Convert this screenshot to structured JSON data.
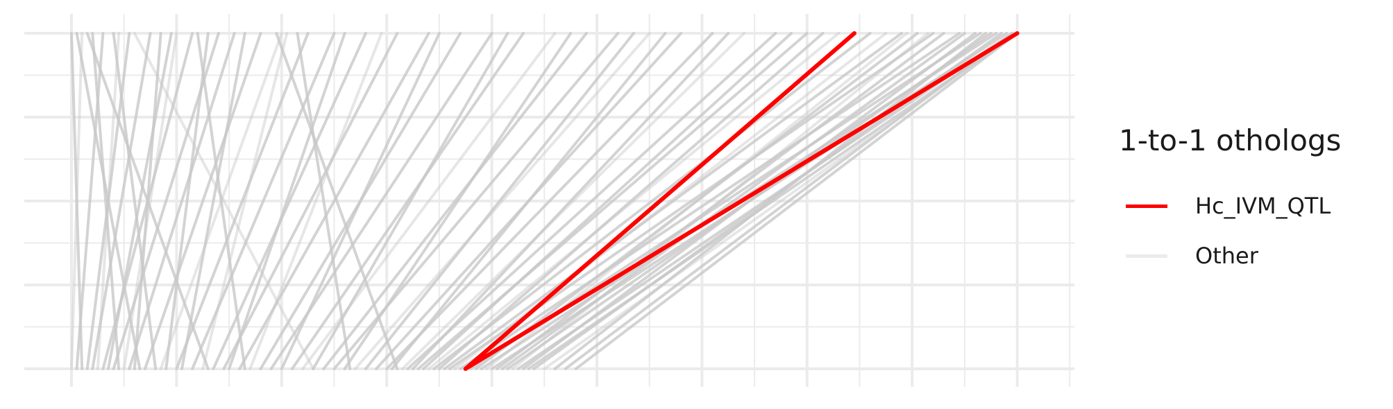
{
  "chart_data": {
    "type": "line",
    "title": "",
    "xlabel": "",
    "ylabel": "",
    "xlim": [
      0,
      19
    ],
    "ylim": [
      0,
      1
    ],
    "grid": true,
    "legend_position": "right",
    "legend": {
      "title": "1-to-1 othologs",
      "entries": [
        {
          "name": "Hc_IVM_QTL",
          "color": "#ff0000"
        },
        {
          "name": "Other",
          "color": "#ebebeb"
        }
      ]
    },
    "series": [
      {
        "name": "Hc_IVM_QTL",
        "color": "#ff0000",
        "segments": [
          {
            "x0": 7.5,
            "x1": 14.9
          },
          {
            "x0": 7.5,
            "x1": 18.0
          }
        ]
      },
      {
        "name": "Other",
        "color": "#c8c8c8",
        "segments": [
          {
            "x0": 0.0,
            "x1": 0.2
          },
          {
            "x0": 0.1,
            "x1": 0.6
          },
          {
            "x0": 0.2,
            "x1": 0.0
          },
          {
            "x0": 0.3,
            "x1": 1.1
          },
          {
            "x0": 0.4,
            "x1": 1.5
          },
          {
            "x0": 0.5,
            "x1": 0.9
          },
          {
            "x0": 0.6,
            "x1": 2.3
          },
          {
            "x0": 0.7,
            "x1": 1.9
          },
          {
            "x0": 0.8,
            "x1": 2.8
          },
          {
            "x0": 0.9,
            "x1": 0.4
          },
          {
            "x0": 1.0,
            "x1": 2.0
          },
          {
            "x0": 1.1,
            "x1": 3.1
          },
          {
            "x0": 1.2,
            "x1": 1.7
          },
          {
            "x0": 1.4,
            "x1": 3.6
          },
          {
            "x0": 1.6,
            "x1": 0.8
          },
          {
            "x0": 1.7,
            "x1": 4.0
          },
          {
            "x0": 1.8,
            "x1": 2.6
          },
          {
            "x0": 2.0,
            "x1": 4.5
          },
          {
            "x0": 2.1,
            "x1": 3.3
          },
          {
            "x0": 2.3,
            "x1": 5.0
          },
          {
            "x0": 2.5,
            "x1": 4.1
          },
          {
            "x0": 2.7,
            "x1": 5.6
          },
          {
            "x0": 2.9,
            "x1": 6.2
          },
          {
            "x0": 3.0,
            "x1": 5.2
          },
          {
            "x0": 3.2,
            "x1": 6.8
          },
          {
            "x0": 3.4,
            "x1": 5.9
          },
          {
            "x0": 3.6,
            "x1": 7.4
          },
          {
            "x0": 3.8,
            "x1": 8.0
          },
          {
            "x0": 4.0,
            "x1": 7.0
          },
          {
            "x0": 4.2,
            "x1": 8.6
          },
          {
            "x0": 4.4,
            "x1": 9.2
          },
          {
            "x0": 4.6,
            "x1": 8.3
          },
          {
            "x0": 4.8,
            "x1": 9.8
          },
          {
            "x0": 5.0,
            "x1": 10.4
          },
          {
            "x0": 5.2,
            "x1": 9.5
          },
          {
            "x0": 5.4,
            "x1": 11.0
          },
          {
            "x0": 5.6,
            "x1": 10.7
          },
          {
            "x0": 5.8,
            "x1": 11.6
          },
          {
            "x0": 6.0,
            "x1": 12.2
          },
          {
            "x0": 6.1,
            "x1": 11.3
          },
          {
            "x0": 6.3,
            "x1": 12.8
          },
          {
            "x0": 6.4,
            "x1": 13.4
          },
          {
            "x0": 6.5,
            "x1": 12.5
          },
          {
            "x0": 6.6,
            "x1": 14.0
          },
          {
            "x0": 6.7,
            "x1": 13.7
          },
          {
            "x0": 6.8,
            "x1": 14.6
          },
          {
            "x0": 6.9,
            "x1": 15.2
          },
          {
            "x0": 7.0,
            "x1": 14.3
          },
          {
            "x0": 7.1,
            "x1": 15.8
          },
          {
            "x0": 7.2,
            "x1": 16.4
          },
          {
            "x0": 7.3,
            "x1": 15.5
          },
          {
            "x0": 7.4,
            "x1": 16.9
          },
          {
            "x0": 7.6,
            "x1": 17.3
          },
          {
            "x0": 7.7,
            "x1": 16.1
          },
          {
            "x0": 7.8,
            "x1": 17.6
          },
          {
            "x0": 7.9,
            "x1": 15.9
          },
          {
            "x0": 8.0,
            "x1": 17.8
          },
          {
            "x0": 8.1,
            "x1": 16.6
          },
          {
            "x0": 8.2,
            "x1": 17.0
          },
          {
            "x0": 8.3,
            "x1": 17.5
          },
          {
            "x0": 8.4,
            "x1": 16.3
          },
          {
            "x0": 8.5,
            "x1": 17.9
          },
          {
            "x0": 8.6,
            "x1": 17.2
          },
          {
            "x0": 8.7,
            "x1": 18.0
          },
          {
            "x0": 8.8,
            "x1": 17.7
          },
          {
            "x0": 9.0,
            "x1": 18.0
          },
          {
            "x0": 9.2,
            "x1": 17.4
          },
          {
            "x0": 9.4,
            "x1": 17.9
          },
          {
            "x0": 9.6,
            "x1": 18.0
          },
          {
            "x0": 2.6,
            "x1": 0.3
          },
          {
            "x0": 4.6,
            "x1": 1.2
          },
          {
            "x0": 6.2,
            "x1": 3.9
          },
          {
            "x0": 1.3,
            "x1": 0.1
          },
          {
            "x0": 3.3,
            "x1": 2.4
          },
          {
            "x0": 5.3,
            "x1": 4.3
          }
        ]
      }
    ]
  }
}
